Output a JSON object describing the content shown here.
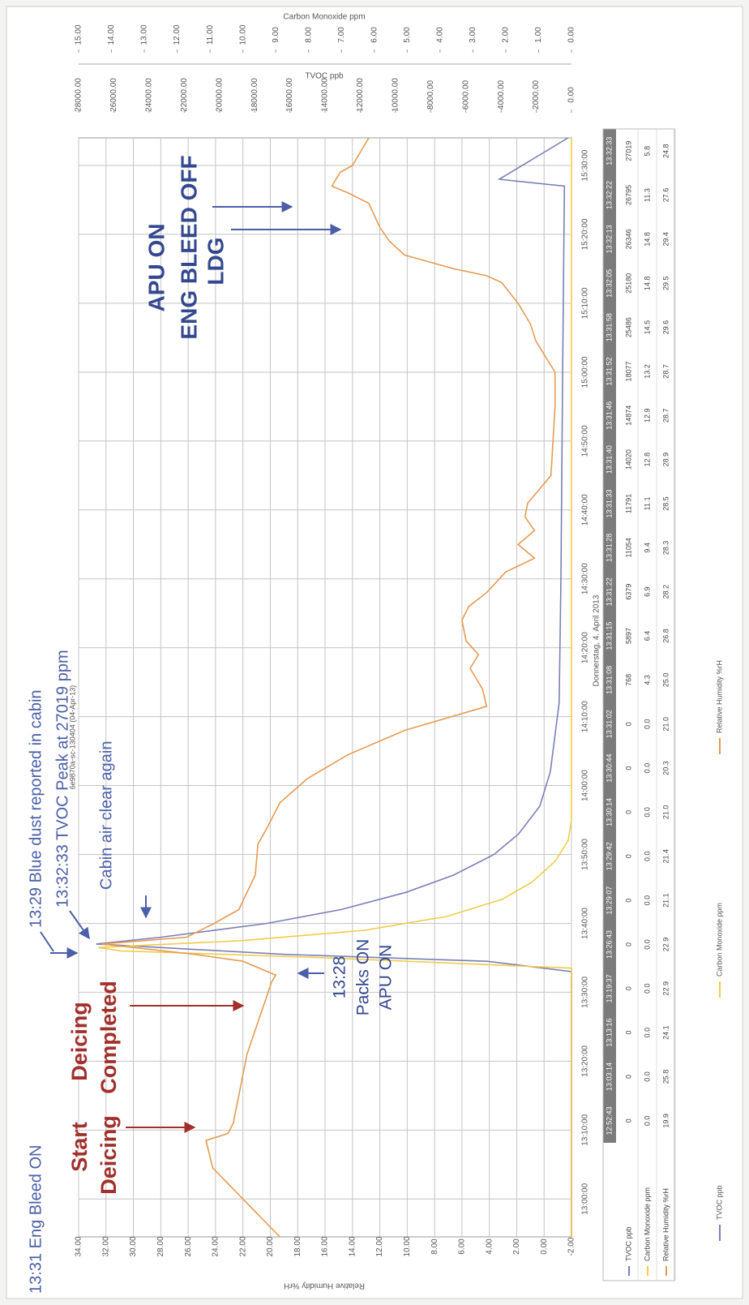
{
  "chart_data": {
    "type": "line",
    "title": "6e9870a-sc-130404 (04-Apr-13)",
    "xlabel": "Donnerstag, 4. April 2013",
    "ylabel": "Relative Humidity %rH",
    "y2label": "TVOC ppb",
    "y3label": "Carbon Monoxide ppm",
    "grid": true,
    "xlim": [
      "12:54:30",
      "15:34:00"
    ],
    "xticks": [
      "13:00:00",
      "13:10:00",
      "13:20:00",
      "13:30:00",
      "13:40:00",
      "13:50:00",
      "14:00:00",
      "14:10:00",
      "14:20:00",
      "14:30:00",
      "14:40:00",
      "14:50:00",
      "15:00:00",
      "15:10:00",
      "15:20:00",
      "15:30:00"
    ],
    "ylim": [
      -2,
      34
    ],
    "yticks": [
      {
        "value": -2,
        "label": "-2.00"
      },
      {
        "value": 0,
        "label": "0.00"
      },
      {
        "value": 2,
        "label": "2.00"
      },
      {
        "value": 4,
        "label": "4.00"
      },
      {
        "value": 6,
        "label": "6.00"
      },
      {
        "value": 8,
        "label": "8.00"
      },
      {
        "value": 10,
        "label": "10.00"
      },
      {
        "value": 12,
        "label": "12.00"
      },
      {
        "value": 14,
        "label": "14.00"
      },
      {
        "value": 16,
        "label": "16.00"
      },
      {
        "value": 18,
        "label": "18.00"
      },
      {
        "value": 20,
        "label": "20.00"
      },
      {
        "value": 22,
        "label": "22.00"
      },
      {
        "value": 24,
        "label": "24.00"
      },
      {
        "value": 26,
        "label": "26.00"
      },
      {
        "value": 28,
        "label": "28.00"
      },
      {
        "value": 30,
        "label": "30.00"
      },
      {
        "value": 32,
        "label": "32.00"
      },
      {
        "value": 34,
        "label": "34.00"
      }
    ],
    "y2lim": [
      0,
      28000
    ],
    "y2ticks": [
      {
        "value": 0,
        "label": "0.00"
      },
      {
        "value": 2000,
        "label": "2000.00"
      },
      {
        "value": 4000,
        "label": "4000.00"
      },
      {
        "value": 6000,
        "label": "6000.00"
      },
      {
        "value": 8000,
        "label": "8000.00"
      },
      {
        "value": 10000,
        "label": "10000.00"
      },
      {
        "value": 12000,
        "label": "12000.00"
      },
      {
        "value": 14000,
        "label": "14000.00"
      },
      {
        "value": 16000,
        "label": "16000.00"
      },
      {
        "value": 18000,
        "label": "18000.00"
      },
      {
        "value": 20000,
        "label": "20000.00"
      },
      {
        "value": 22000,
        "label": "22000.00"
      },
      {
        "value": 24000,
        "label": "24000.00"
      },
      {
        "value": 26000,
        "label": "26000.00"
      },
      {
        "value": 28000,
        "label": "28000.00"
      }
    ],
    "y3lim": [
      0,
      15
    ],
    "y3ticks": [
      {
        "value": 0,
        "label": "0.00"
      },
      {
        "value": 1,
        "label": "1.00"
      },
      {
        "value": 2,
        "label": "2.00"
      },
      {
        "value": 3,
        "label": "3.00"
      },
      {
        "value": 4,
        "label": "4.00"
      },
      {
        "value": 5,
        "label": "5.00"
      },
      {
        "value": 6,
        "label": "6.00"
      },
      {
        "value": 7,
        "label": "7.00"
      },
      {
        "value": 8,
        "label": "8.00"
      },
      {
        "value": 9,
        "label": "9.00"
      },
      {
        "value": 10,
        "label": "10.00"
      },
      {
        "value": 11,
        "label": "11.00"
      },
      {
        "value": 12,
        "label": "12.00"
      },
      {
        "value": 13,
        "label": "13.00"
      },
      {
        "value": 14,
        "label": "14.00"
      },
      {
        "value": 15,
        "label": "15.00"
      }
    ],
    "series": [
      {
        "name": "TVOC ppb",
        "color": "#7a7fb8",
        "axis": "y2",
        "x": [
          "12:54:30",
          "13:33:00",
          "13:34:30",
          "13:35:30",
          "13:37:00",
          "13:38:00",
          "13:40:00",
          "13:42:00",
          "13:44:30",
          "13:47:00",
          "13:50:00",
          "13:53:00",
          "13:57:00",
          "14:02:00",
          "14:12:00",
          "14:30:00",
          "15:00:00",
          "15:27:00",
          "15:28:00",
          "15:34:00"
        ],
        "values": [
          0,
          0,
          4800,
          16300,
          27000,
          23300,
          17300,
          13100,
          9400,
          6700,
          4400,
          3000,
          1800,
          1200,
          700,
          600,
          500,
          400,
          4100,
          200
        ]
      },
      {
        "name": "Carbon Monoxide ppm",
        "color": "#f0cc48",
        "axis": "y3",
        "x": [
          "12:54:30",
          "13:33:30",
          "13:35:00",
          "13:36:00",
          "13:36:30",
          "13:37:30",
          "13:39:00",
          "13:41:00",
          "13:43:30",
          "13:46:00",
          "13:49:00",
          "13:52:00",
          "13:55:00",
          "15:34:00"
        ],
        "values": [
          0,
          0,
          7.5,
          13.7,
          14.4,
          10.0,
          6.3,
          3.8,
          2.1,
          1.2,
          0.5,
          0.1,
          0,
          0
        ]
      },
      {
        "name": "Relative Humidity %rH",
        "color": "#e69a52",
        "axis": "y",
        "x": [
          "12:54:30",
          "13:00:00",
          "13:04:30",
          "13:08:30",
          "13:09:30",
          "13:11:00",
          "13:21:00",
          "13:31:30",
          "13:32:30",
          "13:34:30",
          "13:35:30",
          "13:37:00",
          "13:38:00",
          "13:40:00",
          "13:42:00",
          "13:47:00",
          "13:51:30",
          "13:54:00",
          "13:57:30",
          "14:01:00",
          "14:04:30",
          "14:08:00",
          "14:11:30",
          "14:14:00",
          "14:17:00",
          "14:19:00",
          "14:21:00",
          "14:24:00",
          "14:26:00",
          "14:28:00",
          "14:31:00",
          "14:33:00",
          "14:35:00",
          "14:37:00",
          "14:39:00",
          "14:41:00",
          "14:45:00",
          "14:55:00",
          "15:00:00",
          "15:04:30",
          "15:07:00",
          "15:10:00",
          "15:13:00",
          "15:14:00",
          "15:15:00",
          "15:17:00",
          "15:19:00",
          "15:21:00",
          "15:24:30",
          "15:26:00",
          "15:27:00",
          "15:29:00",
          "15:30:00",
          "15:32:00",
          "15:34:00"
        ],
        "values": [
          19.3,
          22.0,
          24.2,
          24.7,
          23.1,
          22.7,
          21.7,
          19.9,
          19.6,
          22.0,
          25.5,
          32.3,
          26.1,
          24.1,
          22.3,
          21.1,
          20.9,
          20.2,
          19.3,
          17.3,
          14.3,
          10.2,
          4.2,
          4.5,
          5.4,
          4.8,
          5.7,
          6.0,
          5.5,
          4.2,
          2.8,
          0.7,
          1.9,
          0.7,
          1.4,
          1.2,
          -0.5,
          -0.8,
          -0.8,
          0.6,
          1.0,
          1.9,
          3.1,
          4.2,
          6.6,
          10.2,
          11.3,
          12.0,
          12.8,
          14.3,
          15.5,
          14.9,
          14.0,
          13.4,
          12.8
        ]
      }
    ],
    "annotations": [
      "13:31 Eng Bleed ON",
      "13:29 Blue dust reported in cabin",
      "13:32:33 TVOC Peak at 27019 ppm",
      "Cabin air clear again",
      "Start",
      "Deicing",
      "Deicing",
      "Completed",
      "13:28",
      "Packs ON",
      "APU ON",
      "APU ON",
      "ENG BLEED OFF",
      "LDG"
    ],
    "data_table": {
      "header": [
        "12:52:43",
        "13:03:14",
        "13:13:16",
        "13:19:37",
        "13:26:43",
        "13:29:07",
        "13:29:42",
        "13:30:14",
        "13:30:44",
        "13:31:02",
        "13:31:08",
        "13:31:15",
        "13:31:22",
        "13:31:28",
        "13:31:33",
        "13:31:40",
        "13:31:46",
        "13:31:52",
        "13:31:58",
        "13:32:05",
        "13:32:13",
        "13:32:22",
        "13:32:33"
      ],
      "rows": [
        {
          "name": "TVOC ppb",
          "cells": [
            "0",
            "0",
            "0",
            "0",
            "0",
            "0",
            "0",
            "0",
            "0",
            "0",
            "768",
            "5897",
            "6379",
            "11054",
            "11791",
            "14020",
            "14874",
            "18077",
            "25486",
            "25180",
            "26346",
            "26795",
            "27019"
          ]
        },
        {
          "name": "Carbon Monoxide ppm",
          "cells": [
            "0.0",
            "0.0",
            "0.0",
            "0.0",
            "0.0",
            "0.0",
            "0.0",
            "0.0",
            "0.0",
            "0.0",
            "4.3",
            "6.4",
            "6.9",
            "9.4",
            "11.1",
            "12.8",
            "12.9",
            "13.2",
            "14.5",
            "14.8",
            "14.8",
            "11.3",
            "5.8"
          ]
        },
        {
          "name": "Relative Humidity %rH",
          "cells": [
            "19.9",
            "25.8",
            "24.1",
            "22.9",
            "22.9",
            "21.1",
            "21.4",
            "21.0",
            "20.3",
            "21.0",
            "25.0",
            "26.8",
            "28.2",
            "28.3",
            "28.5",
            "28.9",
            "28.7",
            "28.7",
            "29.6",
            "29.5",
            "29.4",
            "27.6",
            "24.8"
          ]
        }
      ]
    }
  }
}
